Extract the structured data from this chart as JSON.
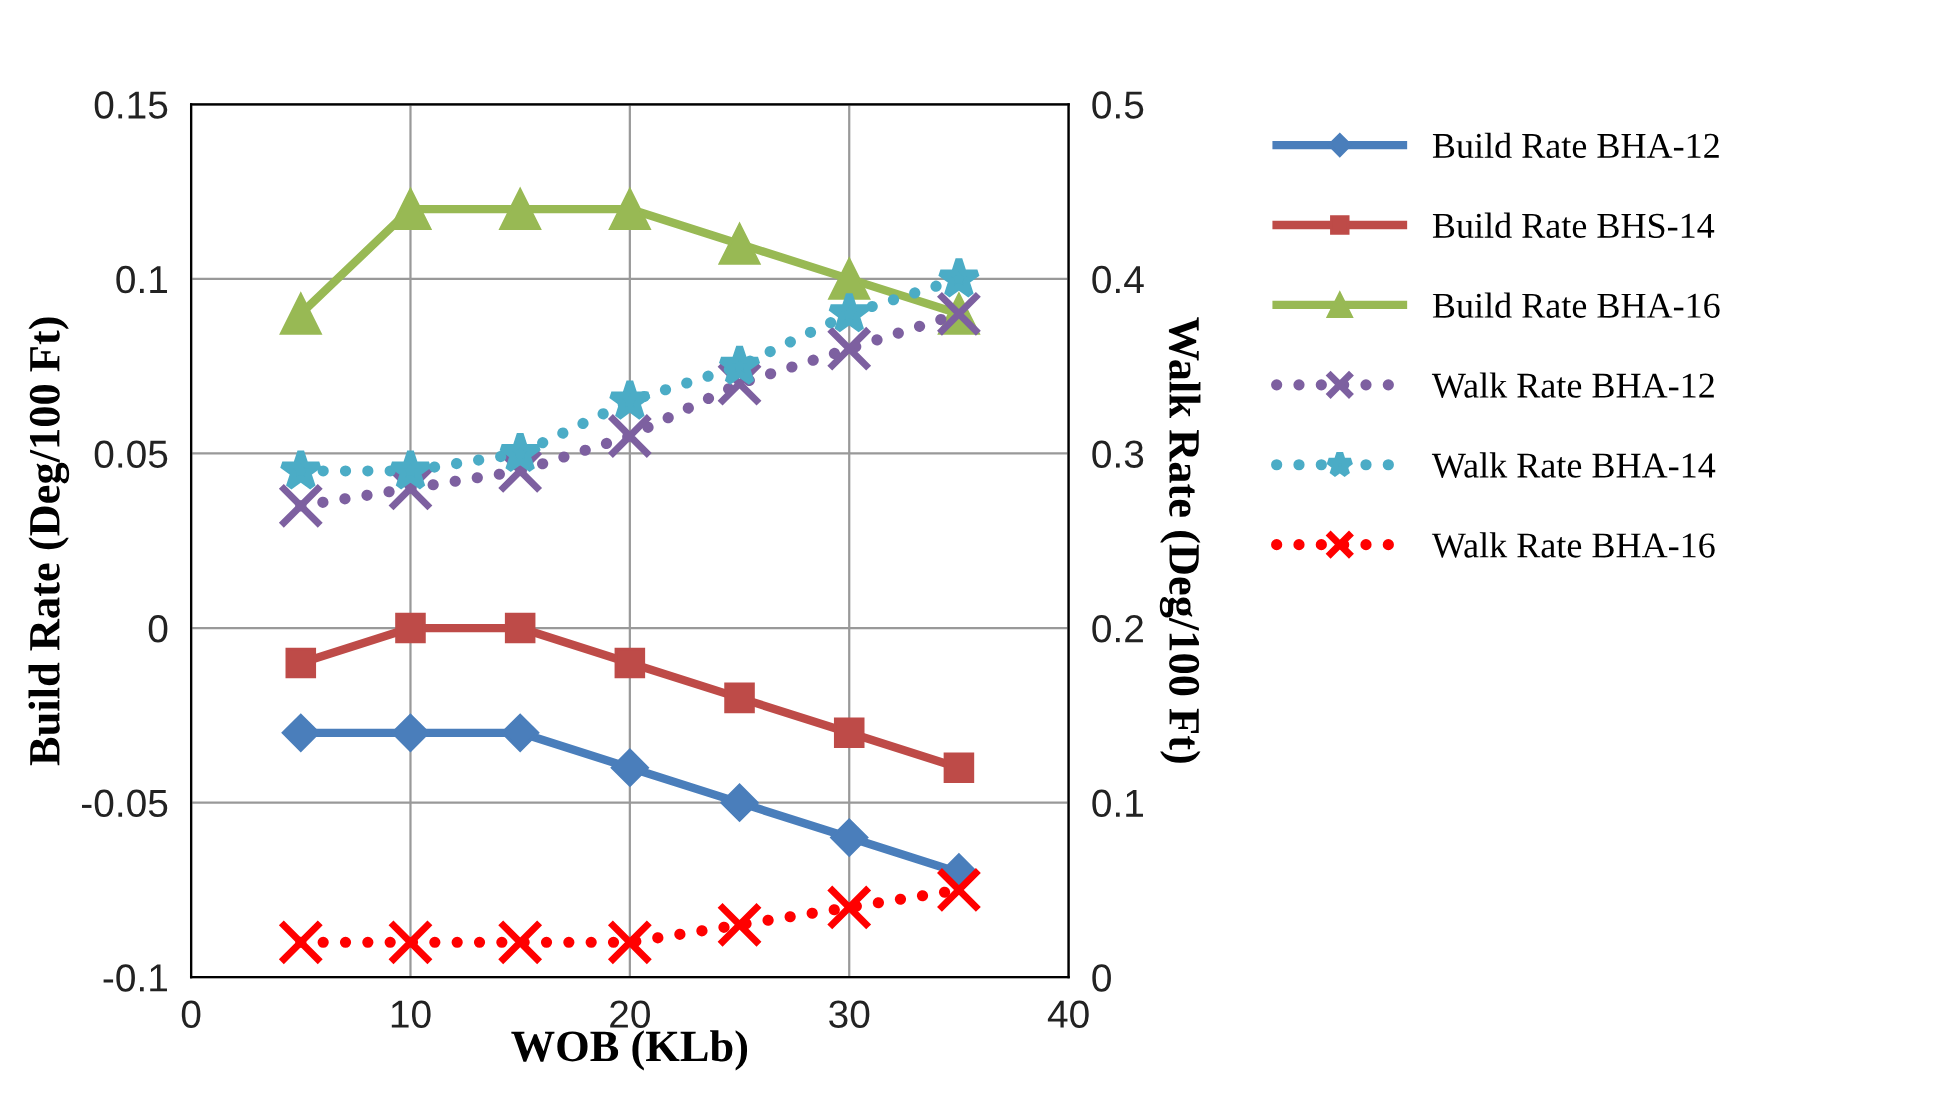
{
  "chart_data": {
    "type": "line",
    "xlabel": "WOB (KLb)",
    "ylabel": "Build Rate (Deg/100 Ft)",
    "y2label": "Walk Rate (Deg/100 Ft)",
    "x": [
      5,
      10,
      15,
      20,
      25,
      30,
      35
    ],
    "xlim": [
      0,
      40
    ],
    "xticks": [
      0,
      10,
      20,
      30,
      40
    ],
    "ylim": [
      -0.1,
      0.15
    ],
    "yticks": [
      -0.1,
      -0.05,
      0,
      0.05,
      0.1,
      0.15
    ],
    "y2lim": [
      0,
      0.5
    ],
    "y2ticks": [
      0,
      0.1,
      0.2,
      0.3,
      0.4,
      0.5
    ],
    "grid": true,
    "legend": "right",
    "series": [
      {
        "name": "Build Rate BHA-12",
        "color": "#4a7ebb",
        "marker": "diamond",
        "line_style": "solid",
        "values": [
          -0.03,
          -0.03,
          -0.03,
          -0.04,
          -0.05,
          -0.06,
          -0.07
        ]
      },
      {
        "name": "Build Rate BHS-14",
        "color": "#be4b48",
        "marker": "square",
        "line_style": "solid",
        "values": [
          -0.01,
          0,
          0,
          -0.01,
          -0.02,
          -0.03,
          -0.04
        ]
      },
      {
        "name": "Build Rate BHA-16",
        "color": "#98b954",
        "marker": "triangle",
        "line_style": "solid",
        "values": [
          0.09,
          0.12,
          0.12,
          0.12,
          0.11,
          0.1,
          0.09
        ]
      },
      {
        "name": "Walk Rate BHA-12",
        "color": "#7d60a0",
        "marker": "cross",
        "line_style": "dotted",
        "axis": "y2",
        "values": [
          0.27,
          0.28,
          0.29,
          0.31,
          0.34,
          0.36,
          0.38
        ]
      },
      {
        "name": "Walk Rate BHA-14",
        "color": "#4bacc6",
        "marker": "star",
        "line_style": "dotted",
        "axis": "y2",
        "values": [
          0.29,
          0.29,
          0.3,
          0.33,
          0.35,
          0.38,
          0.4
        ]
      },
      {
        "name": "Walk Rate BHA-16",
        "color": "#ff0000",
        "marker": "cross",
        "line_style": "dotted",
        "axis": "y2",
        "values": [
          0.02,
          0.02,
          0.02,
          0.02,
          0.03,
          0.04,
          0.05
        ]
      }
    ]
  }
}
